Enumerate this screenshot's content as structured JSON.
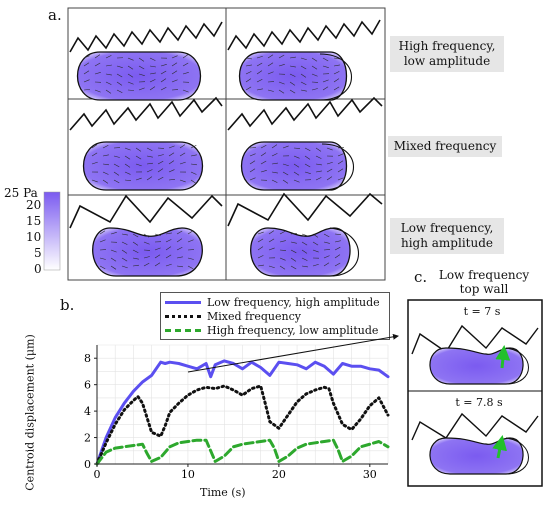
{
  "panel_a": {
    "letter": "a.",
    "row_labels": [
      [
        "High frequency,",
        "low amplitude"
      ],
      [
        "Mixed frequency"
      ],
      [
        "Low frequency,",
        "high amplitude"
      ]
    ],
    "colorbar": {
      "top_label": "25 Pa",
      "ticks": [
        "20",
        "15",
        "10",
        "5",
        "0"
      ],
      "colors": [
        "#ffffff",
        "#7b5bf0"
      ]
    }
  },
  "panel_b": {
    "letter": "b.",
    "legend": [
      "Low frequency, high amplitude",
      "Mixed frequency",
      "High frequency, low amplitude"
    ]
  },
  "panel_c": {
    "letter": "c.",
    "title_line1": "Low frequency",
    "title_line2": "top wall",
    "times": [
      "t = 7 s",
      "t = 7.8 s"
    ]
  },
  "chart_data": {
    "type": "line",
    "xlabel": "Time (s)",
    "ylabel": "Centroid displacement (μm)",
    "xlim": [
      0,
      32
    ],
    "ylim": [
      0,
      9
    ],
    "xticks": [
      "0",
      "10",
      "20",
      "30"
    ],
    "yticks": [
      "0",
      "2",
      "4",
      "6",
      "8"
    ],
    "grid": true,
    "legend_position": "top",
    "series": [
      {
        "name": "Low frequency, high amplitude",
        "color": "#5b4ff0",
        "style": "solid",
        "x": [
          0,
          1,
          2,
          3,
          4,
          5,
          6,
          7,
          7.5,
          8,
          9,
          10,
          11,
          12,
          12.5,
          13,
          14,
          15,
          16,
          17,
          18,
          19,
          20,
          21,
          22,
          23,
          24,
          25,
          26,
          27,
          28,
          29,
          30,
          31,
          32
        ],
        "y": [
          0,
          2.0,
          3.5,
          4.6,
          5.5,
          6.2,
          6.7,
          7.7,
          7.6,
          7.7,
          7.6,
          7.4,
          7.2,
          7.6,
          6.6,
          7.5,
          7.8,
          7.6,
          7.2,
          7.7,
          7.3,
          6.7,
          7.7,
          7.6,
          7.5,
          7.2,
          7.7,
          7.4,
          6.8,
          7.6,
          7.4,
          7.4,
          7.2,
          7.1,
          6.6
        ]
      },
      {
        "name": "Mixed frequency",
        "color": "#111111",
        "style": "dotted",
        "x": [
          0,
          1,
          2,
          3,
          4,
          4.5,
          5,
          6,
          7,
          7.5,
          8,
          9,
          10,
          11,
          12,
          13,
          14,
          15,
          16,
          17,
          18,
          18.5,
          19,
          20,
          21,
          22,
          23,
          24,
          25,
          25.5,
          26,
          27,
          28,
          29,
          30,
          31,
          32
        ],
        "y": [
          0,
          1.6,
          3.0,
          4.1,
          4.8,
          5.1,
          4.6,
          2.4,
          2.1,
          2.9,
          3.9,
          4.6,
          5.2,
          5.6,
          5.8,
          5.7,
          5.9,
          5.6,
          5.2,
          5.7,
          5.9,
          4.6,
          3.2,
          2.7,
          3.7,
          4.7,
          5.3,
          5.6,
          5.8,
          5.7,
          4.6,
          3.0,
          2.6,
          3.4,
          4.4,
          5.0,
          3.7
        ]
      },
      {
        "name": "High frequency, low amplitude",
        "color": "#2da82d",
        "style": "dashed",
        "x": [
          0,
          1,
          2,
          3,
          4,
          5,
          5.5,
          6,
          7,
          8,
          9,
          10,
          11,
          12,
          12.5,
          13,
          14,
          15,
          16,
          17,
          18,
          19,
          19.5,
          20,
          21,
          22,
          23,
          24,
          25,
          26,
          26.5,
          27,
          28,
          29,
          30,
          31,
          32
        ],
        "y": [
          0,
          0.9,
          1.2,
          1.3,
          1.4,
          1.5,
          0.8,
          0.2,
          0.5,
          1.3,
          1.6,
          1.7,
          1.8,
          1.8,
          1.0,
          0.2,
          0.6,
          1.3,
          1.5,
          1.6,
          1.7,
          1.8,
          1.2,
          0.2,
          0.6,
          1.2,
          1.5,
          1.6,
          1.7,
          1.8,
          1.1,
          0.2,
          0.6,
          1.3,
          1.5,
          1.7,
          1.3
        ]
      }
    ]
  }
}
